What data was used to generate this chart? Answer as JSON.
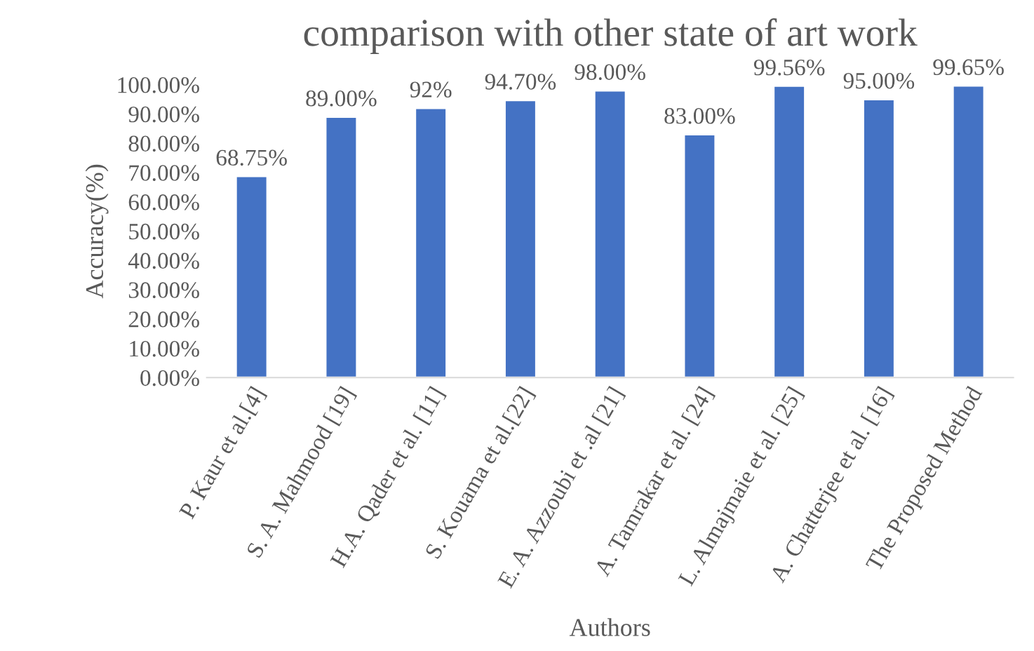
{
  "chart_data": {
    "type": "bar",
    "title": "comparison with other state of art work",
    "xlabel": "Authors",
    "ylabel": "Accuracy(%)",
    "categories": [
      "P. Kaur et al.[4]",
      "S. A. Mahmood [19]",
      "H.A. Qader et al. [11]",
      "S. Kouama et al.[22]",
      "E. A. Azzoubi et .al [21]",
      "A. Tamrakar et al. [24]",
      "L. Almajmaie et al. [25]",
      "A. Chatterjee et al. [16]",
      "The Proposed Method"
    ],
    "values": [
      68.75,
      89,
      92,
      94.7,
      98,
      83,
      99.56,
      95,
      99.65
    ],
    "value_labels": [
      "68.75%",
      "89.00%",
      "92%",
      "94.70%",
      "98.00%",
      "83.00%",
      "99.56%",
      "95.00%",
      "99.65%"
    ],
    "color": "#4472c4",
    "ylim": [
      0,
      100
    ],
    "yticks": [
      {
        "value": 0,
        "label": "0.00%"
      },
      {
        "value": 10,
        "label": "10.00%"
      },
      {
        "value": 20,
        "label": "20.00%"
      },
      {
        "value": 30,
        "label": "30.00%"
      },
      {
        "value": 40,
        "label": "40.00%"
      },
      {
        "value": 50,
        "label": "50.00%"
      },
      {
        "value": 60,
        "label": "60.00%"
      },
      {
        "value": 70,
        "label": "70.00%"
      },
      {
        "value": 80,
        "label": "80.00%"
      },
      {
        "value": 90,
        "label": "90.00%"
      },
      {
        "value": 100,
        "label": "100.00%"
      }
    ],
    "grid": false,
    "legend": false
  }
}
